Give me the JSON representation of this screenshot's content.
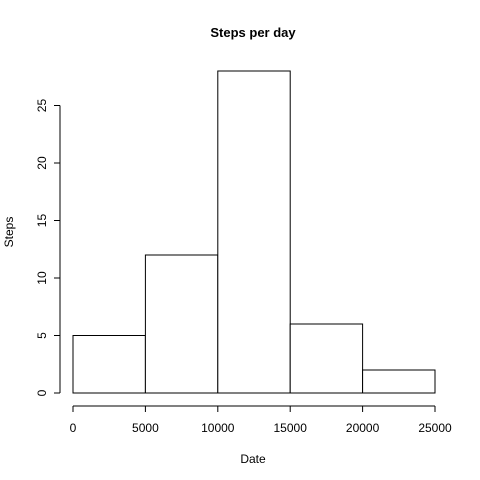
{
  "chart_data": {
    "type": "bar",
    "title": "Steps per day",
    "xlabel": "Date",
    "ylabel": "Steps",
    "bins": [
      {
        "from": 0,
        "to": 5000,
        "count": 5
      },
      {
        "from": 5000,
        "to": 10000,
        "count": 12
      },
      {
        "from": 10000,
        "to": 15000,
        "count": 28
      },
      {
        "from": 15000,
        "to": 20000,
        "count": 6
      },
      {
        "from": 20000,
        "to": 25000,
        "count": 2
      }
    ],
    "xlim": [
      0,
      25000
    ],
    "ylim": [
      0,
      28
    ],
    "xticks": [
      0,
      5000,
      10000,
      15000,
      20000,
      25000
    ],
    "xtick_labels": [
      "0",
      "5000",
      "10000",
      "15000",
      "20000",
      "25000"
    ],
    "yticks": [
      0,
      5,
      10,
      15,
      20,
      25
    ],
    "ytick_labels": [
      "0",
      "5",
      "10",
      "15",
      "20",
      "25"
    ],
    "colors": {
      "bar_fill": "#ffffff",
      "bar_stroke": "#000000"
    }
  }
}
